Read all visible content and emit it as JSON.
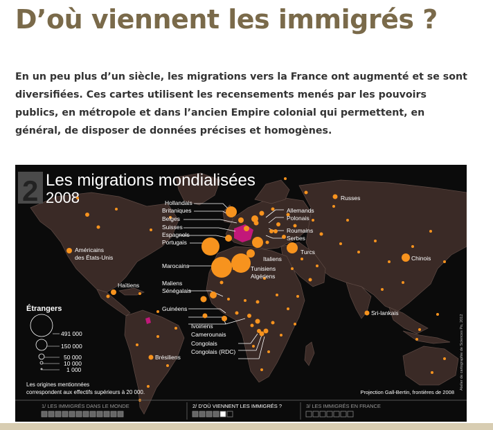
{
  "page_title": "D’où viennent les immigrés ?",
  "intro_text": "En un peu plus d’un siècle, les migrations vers la France ont augmenté et se sont diversifiées. Ces cartes utilisent les recensements menés par les pouvoirs publics, en métropole et dans l’ancien Empire colonial qui permettent, en général, de disposer de données précises et homogènes.",
  "map": {
    "number": "2",
    "title": "Les migrations mondialisées",
    "year": "2008",
    "legend": {
      "title": "Étrangers",
      "values": [
        "491 000",
        "150 000",
        "50 000",
        "10 000",
        "1 000"
      ],
      "note_line1": "Les origines mentionnées",
      "note_line2": "correspondent aux effectifs supérieurs à 20 000."
    },
    "projection": "Projection Gall-Bertin, frontières de 2008",
    "credit": "Atelier de cartographie de Sciences Po, 2012",
    "labels": {
      "hollandais": "Hollandais",
      "britaniques": "Britaniques",
      "belges": "Belges",
      "suisses": "Suisses",
      "espagnols": "Espagnols",
      "portugais": "Portugais",
      "allemands": "Allemands",
      "polonais": "Polonais",
      "roumains": "Roumains",
      "serbes": "Serbes",
      "turcs": "Turcs",
      "italiens": "Italiens",
      "russes": "Russes",
      "chinois": "Chinois",
      "americains1": "Américains",
      "americains2": "des États-Unis",
      "haitiens": "Haïtiens",
      "marocains": "Marocains",
      "tunisiens": "Tunisiens",
      "algeriens": "Algériens",
      "maliens": "Maliens",
      "senegalais": "Sénégalais",
      "guineens": "Guinéens",
      "ivoiriens": "Ivoiriens",
      "camerounais": "Camerounais",
      "congolais": "Congolais",
      "congolais_rdc": "Congolais (RDC)",
      "srilankais": "Sri-lankais",
      "bresiliens": "Brésiliens"
    },
    "nav": {
      "items": [
        {
          "label": "1/ LES IMMIGRÉS DANS LE MONDE",
          "active": false
        },
        {
          "label": "2/ D’OÙ VIENNENT LES IMMIGRÉS ?",
          "active": true
        },
        {
          "label": "3/ LES IMMIGRÉS EN FRANCE",
          "active": false
        }
      ]
    },
    "colors": {
      "background": "#0b0b0b",
      "land": "#3a2a26",
      "border": "#5e4a44",
      "bubble": "#f7931e",
      "france": "#c2187a",
      "header_box": "#4a4a4a"
    }
  }
}
